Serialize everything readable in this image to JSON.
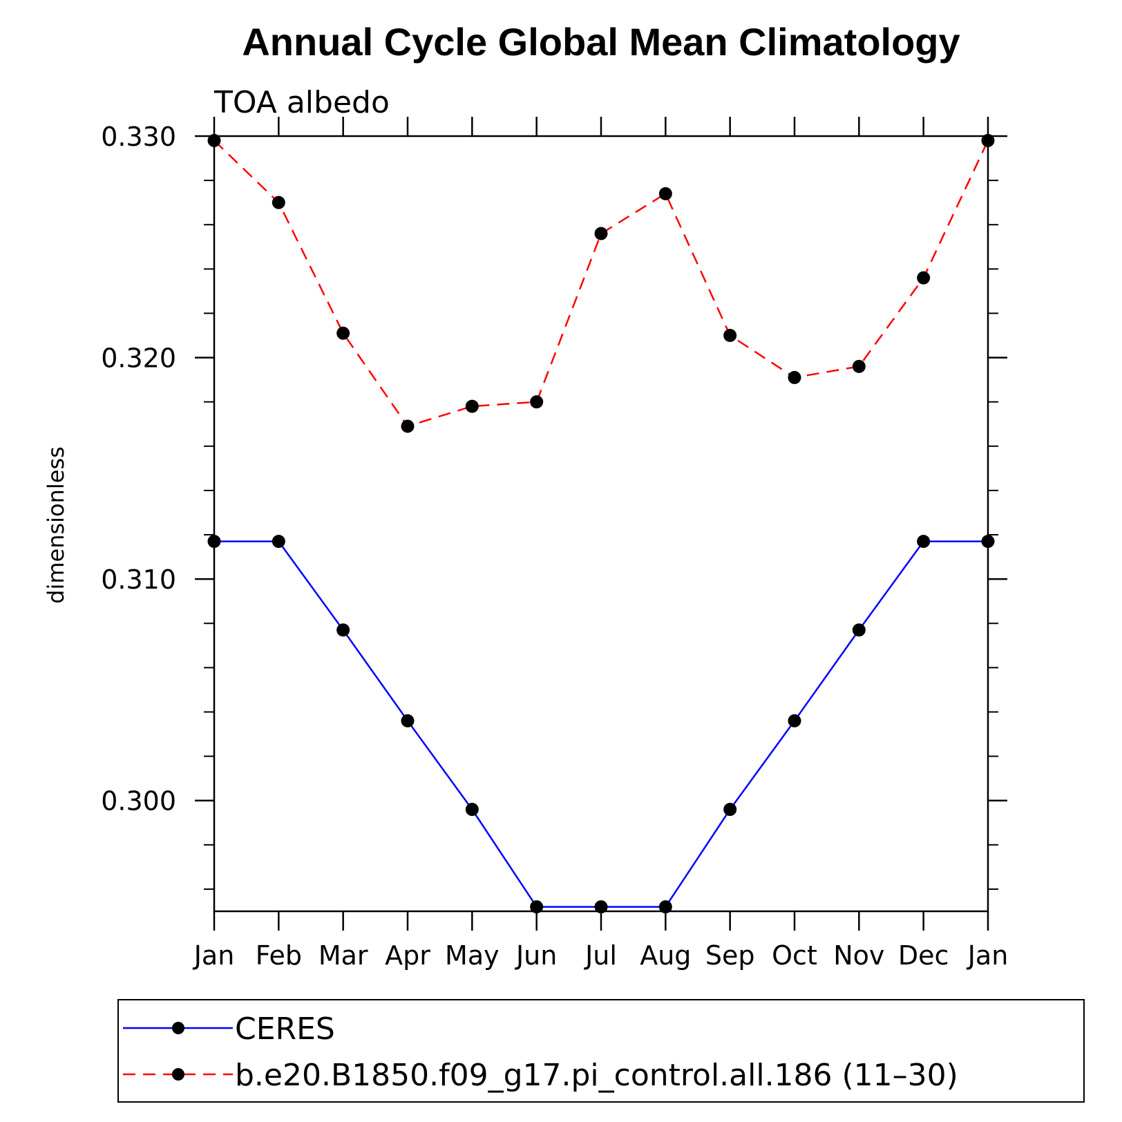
{
  "chart_data": {
    "type": "line",
    "title": "Annual Cycle Global Mean Climatology",
    "subtitle": "TOA albedo",
    "xlabel": "",
    "ylabel": "dimensionless",
    "categories": [
      "Jan",
      "Feb",
      "Mar",
      "Apr",
      "May",
      "Jun",
      "Jul",
      "Aug",
      "Sep",
      "Oct",
      "Nov",
      "Dec",
      "Jan"
    ],
    "ylim": [
      0.295,
      0.33
    ],
    "yticks": [
      0.3,
      0.31,
      0.32,
      0.33
    ],
    "ytick_labels": [
      "0.300",
      "0.310",
      "0.320",
      "0.330"
    ],
    "ytick_minor_step": 0.002,
    "grid": false,
    "legend_position": "bottom",
    "series": [
      {
        "name": "CERES",
        "color": "#0000ff",
        "line_style": "solid",
        "marker": "filled-circle",
        "values": [
          0.3117,
          0.3117,
          0.3077,
          0.3036,
          0.2996,
          0.2952,
          0.2952,
          0.2952,
          0.2996,
          0.3036,
          0.3077,
          0.3117,
          0.3117
        ]
      },
      {
        "name": "b.e20.B1850.f09_g17.pi_control.all.186 (11–30)",
        "color": "#ff0000",
        "line_style": "dashed",
        "marker": "filled-circle",
        "values": [
          0.3298,
          0.327,
          0.3211,
          0.3169,
          0.3178,
          0.318,
          0.3256,
          0.3274,
          0.321,
          0.3191,
          0.3196,
          0.3236,
          0.3298
        ]
      }
    ]
  }
}
